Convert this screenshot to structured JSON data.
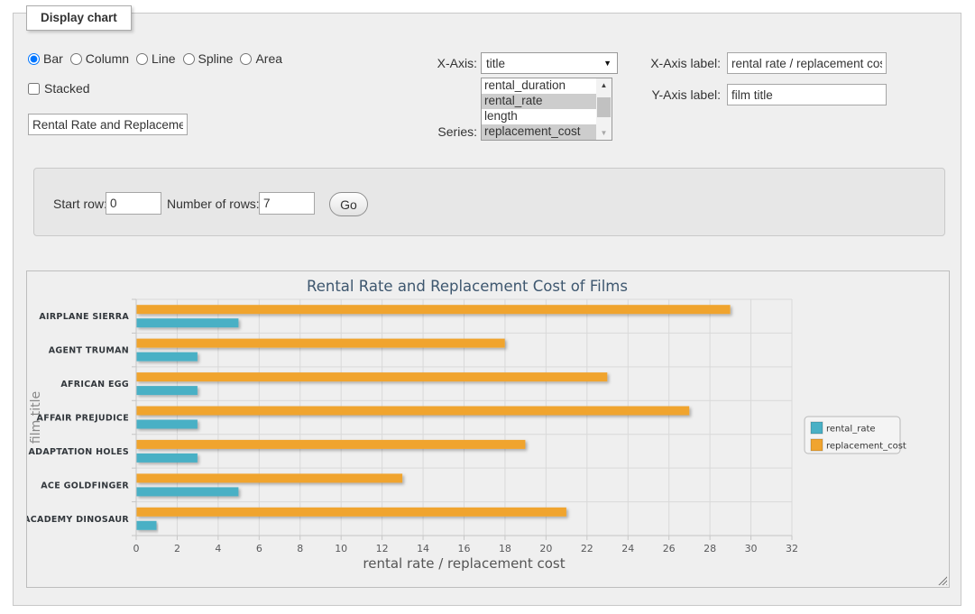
{
  "panel": {
    "legend": "Display chart"
  },
  "chart_type": {
    "options": [
      "Bar",
      "Column",
      "Line",
      "Spline",
      "Area"
    ],
    "selected": "Bar"
  },
  "stacked": {
    "label": "Stacked",
    "checked": false
  },
  "title_input": {
    "value": "Rental Rate and Replacement Cost of Films"
  },
  "x_axis": {
    "label": "X-Axis:",
    "value": "title"
  },
  "series_select": {
    "label": "Series:",
    "options": [
      {
        "label": "rental_duration",
        "selected": false
      },
      {
        "label": "rental_rate",
        "selected": true
      },
      {
        "label": "length",
        "selected": false
      },
      {
        "label": "replacement_cost",
        "selected": true
      }
    ]
  },
  "x_axis_label": {
    "label": "X-Axis label:",
    "value": "rental rate / replacement cost"
  },
  "y_axis_label": {
    "label": "Y-Axis label:",
    "value": "film title"
  },
  "rows_panel": {
    "start_row_label": "Start row:",
    "start_row_value": "0",
    "num_rows_label": "Number of rows:",
    "num_rows_value": "7",
    "go_label": "Go"
  },
  "chart_data": {
    "type": "bar",
    "title": "Rental Rate and Replacement Cost of Films",
    "xlabel": "rental rate / replacement cost",
    "ylabel": "film title",
    "categories": [
      "AIRPLANE SIERRA",
      "AGENT TRUMAN",
      "AFRICAN EGG",
      "AFFAIR PREJUDICE",
      "ADAPTATION HOLES",
      "ACE GOLDFINGER",
      "ACADEMY DINOSAUR"
    ],
    "series": [
      {
        "name": "rental_rate",
        "color": "#4AB0C5",
        "values": [
          4.99,
          2.99,
          2.99,
          2.99,
          2.99,
          4.99,
          0.99
        ]
      },
      {
        "name": "replacement_cost",
        "color": "#F0A42F",
        "values": [
          28.99,
          17.99,
          22.99,
          26.99,
          18.99,
          12.99,
          20.99
        ]
      }
    ],
    "xlim": [
      0,
      32
    ],
    "tick_step": 2,
    "grid": true,
    "legend_position": "right"
  }
}
